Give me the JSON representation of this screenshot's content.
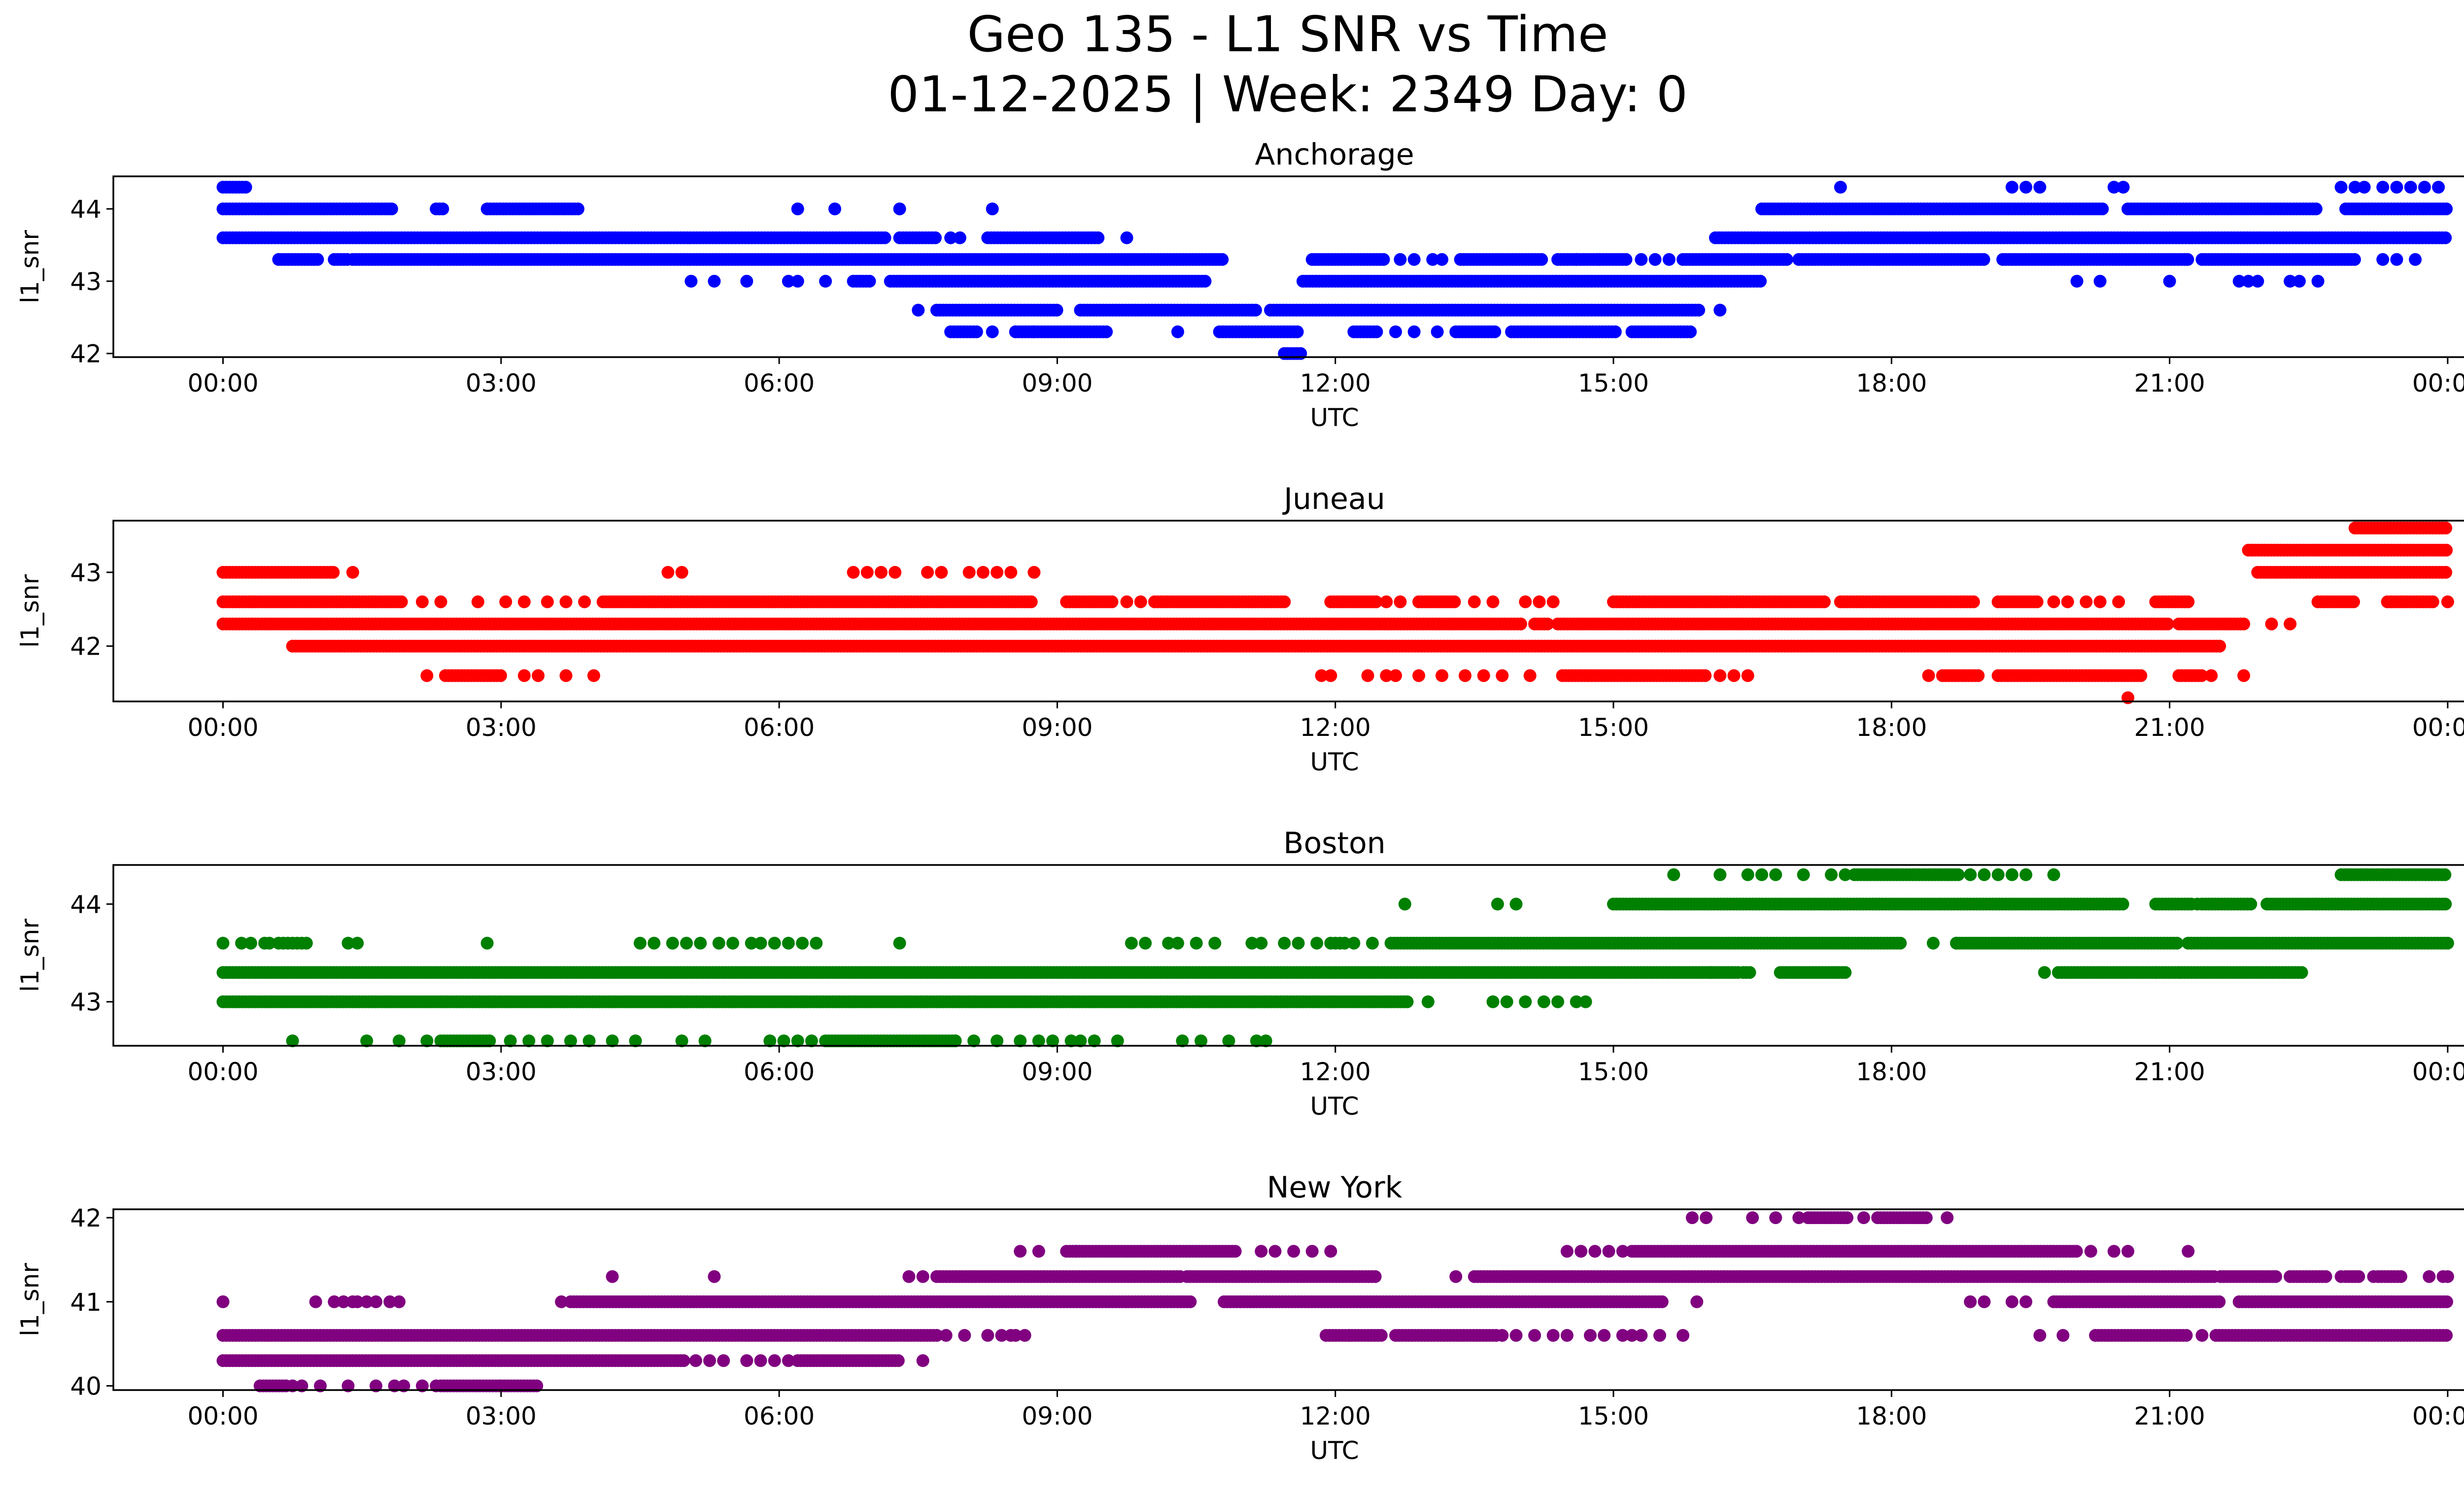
{
  "figure": {
    "title_line1": "Geo 135 - L1 SNR vs Time",
    "title_line2": "01-12-2025 | Week: 2349 Day: 0"
  },
  "chart_data": [
    {
      "type": "scatter",
      "title": "Anchorage",
      "xlabel": "UTC",
      "ylabel": "l1_snr",
      "color": "#0000ff",
      "xlim": [
        "00:00",
        "24:00"
      ],
      "xticks": [
        "00:00",
        "03:00",
        "06:00",
        "09:00",
        "12:00",
        "15:00",
        "18:00",
        "21:00",
        "00:00"
      ],
      "ylim": [
        41.95,
        44.45
      ],
      "yticks": [
        42,
        43,
        44
      ],
      "levels": [
        {
          "y": 44.3,
          "ranges": [
            [
              0.0,
              0.25
            ]
          ],
          "points": [
            17.45,
            19.3,
            19.45,
            19.6,
            20.4,
            20.5,
            22.85,
            23.0,
            23.1,
            23.3,
            23.45,
            23.6,
            23.75,
            23.9
          ]
        },
        {
          "y": 44.0,
          "ranges": [
            [
              0.0,
              1.85
            ],
            [
              2.3,
              2.4
            ],
            [
              2.85,
              3.85
            ],
            [
              16.6,
              20.3
            ],
            [
              20.55,
              22.6
            ],
            [
              22.9,
              24.0
            ]
          ],
          "points": [
            6.2,
            6.6,
            7.3,
            8.3
          ]
        },
        {
          "y": 43.6,
          "ranges": [
            [
              0.0,
              7.15
            ],
            [
              7.3,
              7.7
            ],
            [
              8.25,
              9.45
            ],
            [
              16.1,
              24.0
            ]
          ],
          "points": [
            7.85,
            7.95,
            9.75
          ]
        },
        {
          "y": 43.3,
          "ranges": [
            [
              0.6,
              1.05
            ],
            [
              1.2,
              1.35
            ],
            [
              1.4,
              10.8
            ],
            [
              11.75,
              12.55
            ],
            [
              13.35,
              14.25
            ],
            [
              14.4,
              15.15
            ],
            [
              15.75,
              16.9
            ],
            [
              17.0,
              19.0
            ],
            [
              19.2,
              21.2
            ],
            [
              21.35,
              23.0
            ]
          ],
          "points": [
            12.7,
            12.85,
            13.05,
            13.15,
            14.6,
            14.85,
            15.3,
            15.45,
            15.6,
            23.3,
            23.45,
            23.65
          ]
        },
        {
          "y": 43.0,
          "ranges": [
            [
              6.8,
              7.0
            ],
            [
              7.2,
              10.6
            ],
            [
              11.65,
              16.6
            ]
          ],
          "points": [
            5.05,
            5.3,
            5.65,
            6.1,
            6.2,
            6.5,
            20.0,
            20.25,
            21.0,
            21.75,
            21.85,
            21.95,
            22.3,
            22.4,
            22.6
          ]
        },
        {
          "y": 42.6,
          "ranges": [
            [
              7.7,
              9.0
            ],
            [
              9.25,
              11.15
            ],
            [
              11.3,
              15.95
            ]
          ],
          "points": [
            7.5,
            16.15
          ]
        },
        {
          "y": 42.3,
          "ranges": [
            [
              7.85,
              8.15
            ],
            [
              8.55,
              9.55
            ],
            [
              10.75,
              11.6
            ],
            [
              12.2,
              12.45
            ],
            [
              13.3,
              13.75
            ],
            [
              13.9,
              15.05
            ],
            [
              15.2,
              15.85
            ]
          ],
          "points": [
            8.3,
            8.55,
            8.75,
            10.3,
            12.65,
            12.85,
            13.1
          ]
        },
        {
          "y": 42.0,
          "ranges": [
            [
              11.45,
              11.65
            ]
          ],
          "points": []
        }
      ]
    },
    {
      "type": "scatter",
      "title": "Juneau",
      "xlabel": "UTC",
      "ylabel": "l1_snr",
      "color": "#ff0000",
      "xlim": [
        "00:00",
        "24:00"
      ],
      "xticks": [
        "00:00",
        "03:00",
        "06:00",
        "09:00",
        "12:00",
        "15:00",
        "18:00",
        "21:00",
        "00:00"
      ],
      "ylim": [
        41.25,
        43.7
      ],
      "yticks": [
        42,
        43
      ],
      "levels": [
        {
          "y": 43.6,
          "ranges": [
            [
              23.0,
              24.0
            ]
          ],
          "points": []
        },
        {
          "y": 43.3,
          "ranges": [
            [
              21.85,
              24.0
            ]
          ],
          "points": []
        },
        {
          "y": 43.0,
          "ranges": [
            [
              0.0,
              1.2
            ],
            [
              21.95,
              24.0
            ]
          ],
          "points": [
            1.4,
            4.8,
            4.95,
            6.8,
            6.95,
            7.1,
            7.25,
            7.6,
            7.75,
            8.05,
            8.2,
            8.35,
            8.5,
            8.75
          ]
        },
        {
          "y": 42.6,
          "ranges": [
            [
              0.0,
              1.95
            ],
            [
              4.1,
              8.75
            ],
            [
              9.1,
              9.6
            ],
            [
              10.05,
              11.45
            ],
            [
              11.95,
              12.45
            ],
            [
              12.9,
              13.3
            ],
            [
              15.0,
              17.3
            ],
            [
              17.45,
              18.9
            ],
            [
              19.15,
              19.6
            ],
            [
              20.85,
              21.2
            ],
            [
              22.6,
              23.0
            ],
            [
              23.35,
              23.85
            ]
          ],
          "points": [
            2.15,
            2.35,
            2.75,
            3.05,
            3.25,
            3.5,
            3.7,
            3.9,
            9.75,
            9.9,
            12.55,
            12.7,
            13.5,
            13.7,
            14.05,
            14.2,
            14.35,
            19.75,
            19.9,
            20.1,
            20.25,
            20.45,
            24.0
          ]
        },
        {
          "y": 42.3,
          "ranges": [
            [
              0.0,
              14.0
            ],
            [
              14.15,
              14.3
            ],
            [
              14.4,
              21.0
            ],
            [
              21.1,
              21.8
            ]
          ],
          "points": [
            22.1,
            22.3
          ]
        },
        {
          "y": 42.0,
          "ranges": [
            [
              0.75,
              21.55
            ]
          ],
          "points": []
        },
        {
          "y": 41.6,
          "ranges": [
            [
              2.4,
              3.0
            ],
            [
              14.45,
              16.0
            ],
            [
              18.55,
              18.95
            ],
            [
              19.15,
              20.7
            ],
            [
              21.1,
              21.35
            ]
          ],
          "points": [
            2.2,
            3.25,
            3.4,
            3.7,
            4.0,
            11.85,
            11.95,
            12.35,
            12.55,
            12.65,
            12.9,
            13.15,
            13.4,
            13.6,
            13.8,
            14.1,
            16.15,
            16.3,
            16.45,
            18.4,
            21.45,
            21.8
          ]
        },
        {
          "y": 41.3,
          "ranges": [],
          "points": [
            20.55
          ]
        }
      ]
    },
    {
      "type": "scatter",
      "title": "Boston",
      "xlabel": "UTC",
      "ylabel": "l1_snr",
      "color": "#008000",
      "xlim": [
        "00:00",
        "24:00"
      ],
      "xticks": [
        "00:00",
        "03:00",
        "06:00",
        "09:00",
        "12:00",
        "15:00",
        "18:00",
        "21:00",
        "00:00"
      ],
      "ylim": [
        42.55,
        44.4
      ],
      "yticks": [
        43,
        44
      ],
      "levels": [
        {
          "y": 44.3,
          "ranges": [
            [
              17.6,
              18.75
            ],
            [
              22.85,
              24.0
            ]
          ],
          "points": [
            15.65,
            16.15,
            16.45,
            16.6,
            16.75,
            17.05,
            17.35,
            17.5,
            18.85,
            19.0,
            19.15,
            19.3,
            19.45,
            19.75
          ]
        },
        {
          "y": 44.0,
          "ranges": [
            [
              15.0,
              20.5
            ],
            [
              20.85,
              21.25
            ],
            [
              21.35,
              21.9
            ],
            [
              22.05,
              24.0
            ]
          ],
          "points": [
            12.75,
            13.75,
            13.95,
            21.3
          ]
        },
        {
          "y": 43.6,
          "ranges": [
            [
              12.6,
              18.1
            ],
            [
              18.7,
              21.1
            ],
            [
              21.2,
              24.0
            ]
          ],
          "points": [
            0.0,
            0.2,
            0.3,
            0.45,
            0.5,
            0.6,
            0.65,
            0.7,
            0.75,
            0.8,
            0.85,
            0.9,
            1.35,
            1.45,
            2.85,
            4.5,
            4.65,
            4.85,
            5.0,
            5.15,
            5.35,
            5.5,
            5.7,
            5.8,
            5.95,
            6.1,
            6.25,
            6.4,
            7.3,
            9.8,
            9.95,
            10.2,
            10.3,
            10.5,
            10.7,
            11.1,
            11.2,
            11.45,
            11.6,
            11.8,
            11.95,
            12.0,
            12.05,
            12.1,
            12.2,
            12.4,
            18.45,
            18.7
          ]
        },
        {
          "y": 43.3,
          "ranges": [
            [
              0.0,
              16.35
            ],
            [
              16.4,
              16.5
            ],
            [
              16.8,
              17.5
            ],
            [
              19.8,
              22.45
            ]
          ],
          "points": [
            16.05,
            19.65,
            20.85,
            21.1
          ]
        },
        {
          "y": 43.0,
          "ranges": [
            [
              0.0,
              12.8
            ]
          ],
          "points": [
            13.0,
            13.7,
            13.85,
            14.05,
            14.25,
            14.4,
            14.6,
            14.7
          ]
        },
        {
          "y": 42.6,
          "ranges": [
            [
              2.35,
              2.9
            ],
            [
              6.5,
              7.9
            ]
          ],
          "points": [
            0.75,
            1.55,
            1.9,
            2.2,
            3.1,
            3.3,
            3.5,
            3.75,
            3.95,
            4.2,
            4.45,
            4.95,
            5.2,
            5.9,
            6.05,
            6.2,
            6.35,
            7.9,
            8.1,
            8.35,
            8.6,
            8.8,
            8.95,
            9.15,
            9.25,
            9.4,
            9.65,
            10.35,
            10.55,
            10.85,
            11.15,
            11.25
          ]
        }
      ]
    },
    {
      "type": "scatter",
      "title": "New York",
      "xlabel": "UTC",
      "ylabel": "l1_snr",
      "color": "#800080",
      "xlim": [
        "00:00",
        "24:00"
      ],
      "xticks": [
        "00:00",
        "03:00",
        "06:00",
        "09:00",
        "12:00",
        "15:00",
        "18:00",
        "21:00",
        "00:00"
      ],
      "ylim": [
        39.95,
        42.1
      ],
      "yticks": [
        40,
        41,
        42
      ],
      "levels": [
        {
          "y": 42.0,
          "ranges": [
            [
              17.1,
              17.55
            ],
            [
              17.85,
              18.4
            ]
          ],
          "points": [
            15.85,
            16.0,
            16.5,
            16.75,
            17.0,
            17.7,
            18.6
          ]
        },
        {
          "y": 41.6,
          "ranges": [
            [
              9.1,
              10.95
            ],
            [
              15.2,
              20.0
            ]
          ],
          "points": [
            8.6,
            8.8,
            9.2,
            11.2,
            11.35,
            11.55,
            11.75,
            11.95,
            14.5,
            14.65,
            14.8,
            14.95,
            15.1,
            20.15,
            20.4,
            20.55,
            21.2
          ]
        },
        {
          "y": 41.3,
          "ranges": [
            [
              7.7,
              10.35
            ],
            [
              10.4,
              12.45
            ],
            [
              13.5,
              21.5
            ],
            [
              21.55,
              22.15
            ],
            [
              22.3,
              22.7
            ],
            [
              22.9,
              23.05
            ],
            [
              23.25,
              23.5
            ]
          ],
          "points": [
            4.2,
            5.3,
            7.4,
            7.55,
            13.3,
            22.85,
            23.2,
            23.8,
            23.95,
            24.0
          ]
        },
        {
          "y": 41.0,
          "ranges": [
            [
              3.75,
              10.45
            ],
            [
              10.8,
              15.55
            ],
            [
              19.75,
              21.55
            ],
            [
              21.75,
              24.0
            ]
          ],
          "points": [
            0.0,
            1.0,
            1.2,
            1.3,
            1.4,
            1.45,
            1.55,
            1.65,
            1.8,
            1.9,
            3.65,
            15.9,
            18.85,
            19.0,
            19.3,
            19.45
          ]
        },
        {
          "y": 40.6,
          "ranges": [
            [
              0.0,
              7.7
            ],
            [
              11.9,
              12.5
            ],
            [
              12.65,
              13.75
            ],
            [
              20.2,
              21.2
            ],
            [
              21.5,
              24.0
            ]
          ],
          "points": [
            7.8,
            8.0,
            8.25,
            8.4,
            8.5,
            8.55,
            8.65,
            12.15,
            13.8,
            13.95,
            14.15,
            14.35,
            14.5,
            14.75,
            14.9,
            15.1,
            15.2,
            15.3,
            15.5,
            15.75,
            19.6,
            19.85,
            21.35
          ]
        },
        {
          "y": 40.3,
          "ranges": [
            [
              0.0,
              5.0
            ],
            [
              6.2,
              7.3
            ]
          ],
          "points": [
            5.1,
            5.25,
            5.4,
            5.65,
            5.8,
            5.95,
            6.1,
            7.55
          ]
        },
        {
          "y": 40.0,
          "ranges": [
            [
              0.4,
              0.7
            ],
            [
              2.35,
              3.0
            ],
            [
              3.0,
              3.4
            ]
          ],
          "points": [
            0.75,
            0.85,
            1.05,
            1.35,
            1.65,
            1.85,
            1.95,
            2.15,
            2.3
          ]
        }
      ]
    }
  ]
}
